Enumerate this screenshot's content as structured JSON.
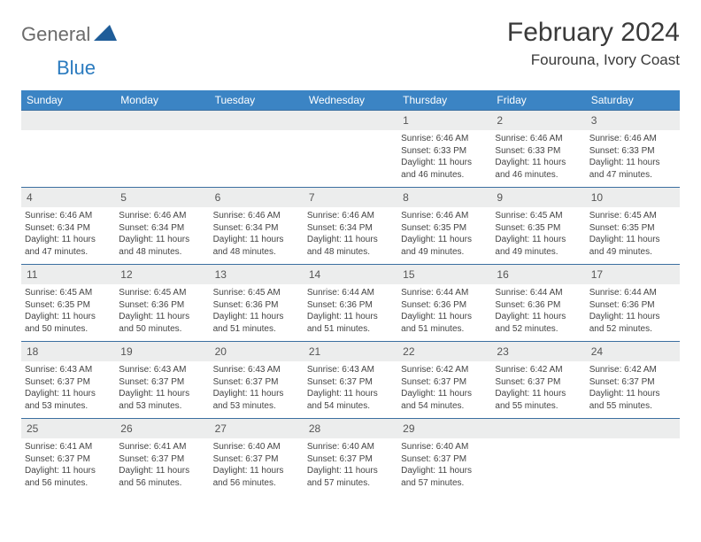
{
  "logo": {
    "text1": "General",
    "text2": "Blue"
  },
  "title": "February 2024",
  "location": "Fourouna, Ivory Coast",
  "colors": {
    "header_bg": "#3b84c4",
    "header_text": "#ffffff",
    "daynum_bg": "#eceded",
    "week_divider": "#3b6fa0",
    "logo_gray": "#6b6b6b",
    "logo_blue": "#2b7bbf",
    "triangle": "#1f5d99"
  },
  "weekdays": [
    "Sunday",
    "Monday",
    "Tuesday",
    "Wednesday",
    "Thursday",
    "Friday",
    "Saturday"
  ],
  "weeks": [
    [
      null,
      null,
      null,
      null,
      {
        "n": "1",
        "sunrise": "6:46 AM",
        "sunset": "6:33 PM",
        "daylight": "11 hours and 46 minutes."
      },
      {
        "n": "2",
        "sunrise": "6:46 AM",
        "sunset": "6:33 PM",
        "daylight": "11 hours and 46 minutes."
      },
      {
        "n": "3",
        "sunrise": "6:46 AM",
        "sunset": "6:33 PM",
        "daylight": "11 hours and 47 minutes."
      }
    ],
    [
      {
        "n": "4",
        "sunrise": "6:46 AM",
        "sunset": "6:34 PM",
        "daylight": "11 hours and 47 minutes."
      },
      {
        "n": "5",
        "sunrise": "6:46 AM",
        "sunset": "6:34 PM",
        "daylight": "11 hours and 48 minutes."
      },
      {
        "n": "6",
        "sunrise": "6:46 AM",
        "sunset": "6:34 PM",
        "daylight": "11 hours and 48 minutes."
      },
      {
        "n": "7",
        "sunrise": "6:46 AM",
        "sunset": "6:34 PM",
        "daylight": "11 hours and 48 minutes."
      },
      {
        "n": "8",
        "sunrise": "6:46 AM",
        "sunset": "6:35 PM",
        "daylight": "11 hours and 49 minutes."
      },
      {
        "n": "9",
        "sunrise": "6:45 AM",
        "sunset": "6:35 PM",
        "daylight": "11 hours and 49 minutes."
      },
      {
        "n": "10",
        "sunrise": "6:45 AM",
        "sunset": "6:35 PM",
        "daylight": "11 hours and 49 minutes."
      }
    ],
    [
      {
        "n": "11",
        "sunrise": "6:45 AM",
        "sunset": "6:35 PM",
        "daylight": "11 hours and 50 minutes."
      },
      {
        "n": "12",
        "sunrise": "6:45 AM",
        "sunset": "6:36 PM",
        "daylight": "11 hours and 50 minutes."
      },
      {
        "n": "13",
        "sunrise": "6:45 AM",
        "sunset": "6:36 PM",
        "daylight": "11 hours and 51 minutes."
      },
      {
        "n": "14",
        "sunrise": "6:44 AM",
        "sunset": "6:36 PM",
        "daylight": "11 hours and 51 minutes."
      },
      {
        "n": "15",
        "sunrise": "6:44 AM",
        "sunset": "6:36 PM",
        "daylight": "11 hours and 51 minutes."
      },
      {
        "n": "16",
        "sunrise": "6:44 AM",
        "sunset": "6:36 PM",
        "daylight": "11 hours and 52 minutes."
      },
      {
        "n": "17",
        "sunrise": "6:44 AM",
        "sunset": "6:36 PM",
        "daylight": "11 hours and 52 minutes."
      }
    ],
    [
      {
        "n": "18",
        "sunrise": "6:43 AM",
        "sunset": "6:37 PM",
        "daylight": "11 hours and 53 minutes."
      },
      {
        "n": "19",
        "sunrise": "6:43 AM",
        "sunset": "6:37 PM",
        "daylight": "11 hours and 53 minutes."
      },
      {
        "n": "20",
        "sunrise": "6:43 AM",
        "sunset": "6:37 PM",
        "daylight": "11 hours and 53 minutes."
      },
      {
        "n": "21",
        "sunrise": "6:43 AM",
        "sunset": "6:37 PM",
        "daylight": "11 hours and 54 minutes."
      },
      {
        "n": "22",
        "sunrise": "6:42 AM",
        "sunset": "6:37 PM",
        "daylight": "11 hours and 54 minutes."
      },
      {
        "n": "23",
        "sunrise": "6:42 AM",
        "sunset": "6:37 PM",
        "daylight": "11 hours and 55 minutes."
      },
      {
        "n": "24",
        "sunrise": "6:42 AM",
        "sunset": "6:37 PM",
        "daylight": "11 hours and 55 minutes."
      }
    ],
    [
      {
        "n": "25",
        "sunrise": "6:41 AM",
        "sunset": "6:37 PM",
        "daylight": "11 hours and 56 minutes."
      },
      {
        "n": "26",
        "sunrise": "6:41 AM",
        "sunset": "6:37 PM",
        "daylight": "11 hours and 56 minutes."
      },
      {
        "n": "27",
        "sunrise": "6:40 AM",
        "sunset": "6:37 PM",
        "daylight": "11 hours and 56 minutes."
      },
      {
        "n": "28",
        "sunrise": "6:40 AM",
        "sunset": "6:37 PM",
        "daylight": "11 hours and 57 minutes."
      },
      {
        "n": "29",
        "sunrise": "6:40 AM",
        "sunset": "6:37 PM",
        "daylight": "11 hours and 57 minutes."
      },
      null,
      null
    ]
  ],
  "labels": {
    "sunrise": "Sunrise:",
    "sunset": "Sunset:",
    "daylight": "Daylight:"
  }
}
